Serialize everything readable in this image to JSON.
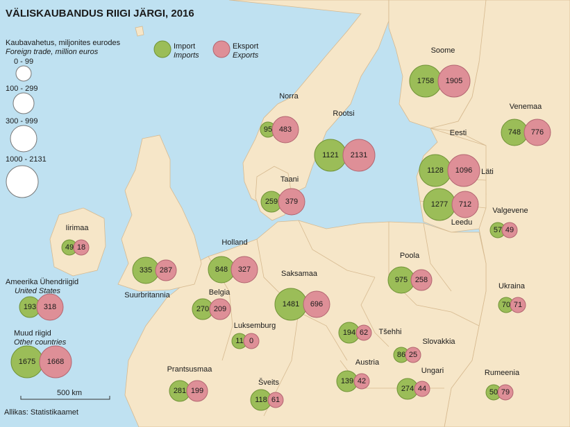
{
  "title": "VÄLISKAUBANDUS RIIGI JÄRGI, 2016",
  "size_legend": {
    "heading": "Kaubavahetus, miljonites eurodes",
    "heading_en": "Foreign trade, million euros",
    "classes": [
      "0 - 99",
      "100 - 299",
      "300 - 999",
      "1000 - 2131"
    ]
  },
  "series_legend": {
    "import": "Import",
    "import_en": "Imports",
    "export": "Eksport",
    "export_en": "Exports"
  },
  "colors": {
    "import": "#9bbd58",
    "export": "#de8f97",
    "land": "#f6e6c8",
    "sea": "#bfe1f1"
  },
  "countries": [
    {
      "name": "Soome",
      "import": 1758,
      "export": 1905
    },
    {
      "name": "Norra",
      "import": 95,
      "export": 483
    },
    {
      "name": "Rootsi",
      "import": 1121,
      "export": 2131
    },
    {
      "name": "Venemaa",
      "import": 748,
      "export": 776
    },
    {
      "name": "Eesti",
      "import": null,
      "export": null
    },
    {
      "name": "Läti",
      "import": 1128,
      "export": 1096
    },
    {
      "name": "Leedu",
      "import": 1277,
      "export": 712
    },
    {
      "name": "Taani",
      "import": 259,
      "export": 379
    },
    {
      "name": "Valgevene",
      "import": 57,
      "export": 49
    },
    {
      "name": "Iirimaa",
      "import": 49,
      "export": 18
    },
    {
      "name": "Suurbritannia",
      "import": 335,
      "export": 287
    },
    {
      "name": "Holland",
      "import": 848,
      "export": 327
    },
    {
      "name": "Poola",
      "import": 975,
      "export": 258
    },
    {
      "name": "Belgia",
      "import": 270,
      "export": 209
    },
    {
      "name": "Saksamaa",
      "import": 1481,
      "export": 696
    },
    {
      "name": "Ukraina",
      "import": 70,
      "export": 71
    },
    {
      "name": "Luksemburg",
      "import": 11,
      "export": 0
    },
    {
      "name": "Tšehhi",
      "import": 194,
      "export": 62
    },
    {
      "name": "Slovakkia",
      "import": 86,
      "export": 25
    },
    {
      "name": "Austria",
      "import": 139,
      "export": 42
    },
    {
      "name": "Ungari",
      "import": 274,
      "export": 44
    },
    {
      "name": "Prantsusmaa",
      "import": 281,
      "export": 199
    },
    {
      "name": "Šveits",
      "import": 118,
      "export": 61
    },
    {
      "name": "Rumeenia",
      "import": 50,
      "export": 79
    }
  ],
  "extra": [
    {
      "name": "Ameerika Ühendriigid",
      "name_en": "United States",
      "import": 193,
      "export": 318
    },
    {
      "name": "Muud riigid",
      "name_en": "Other countries",
      "import": 1675,
      "export": 1668
    }
  ],
  "scale_bar": "500 km",
  "source": "Allikas: Statistikaamet"
}
